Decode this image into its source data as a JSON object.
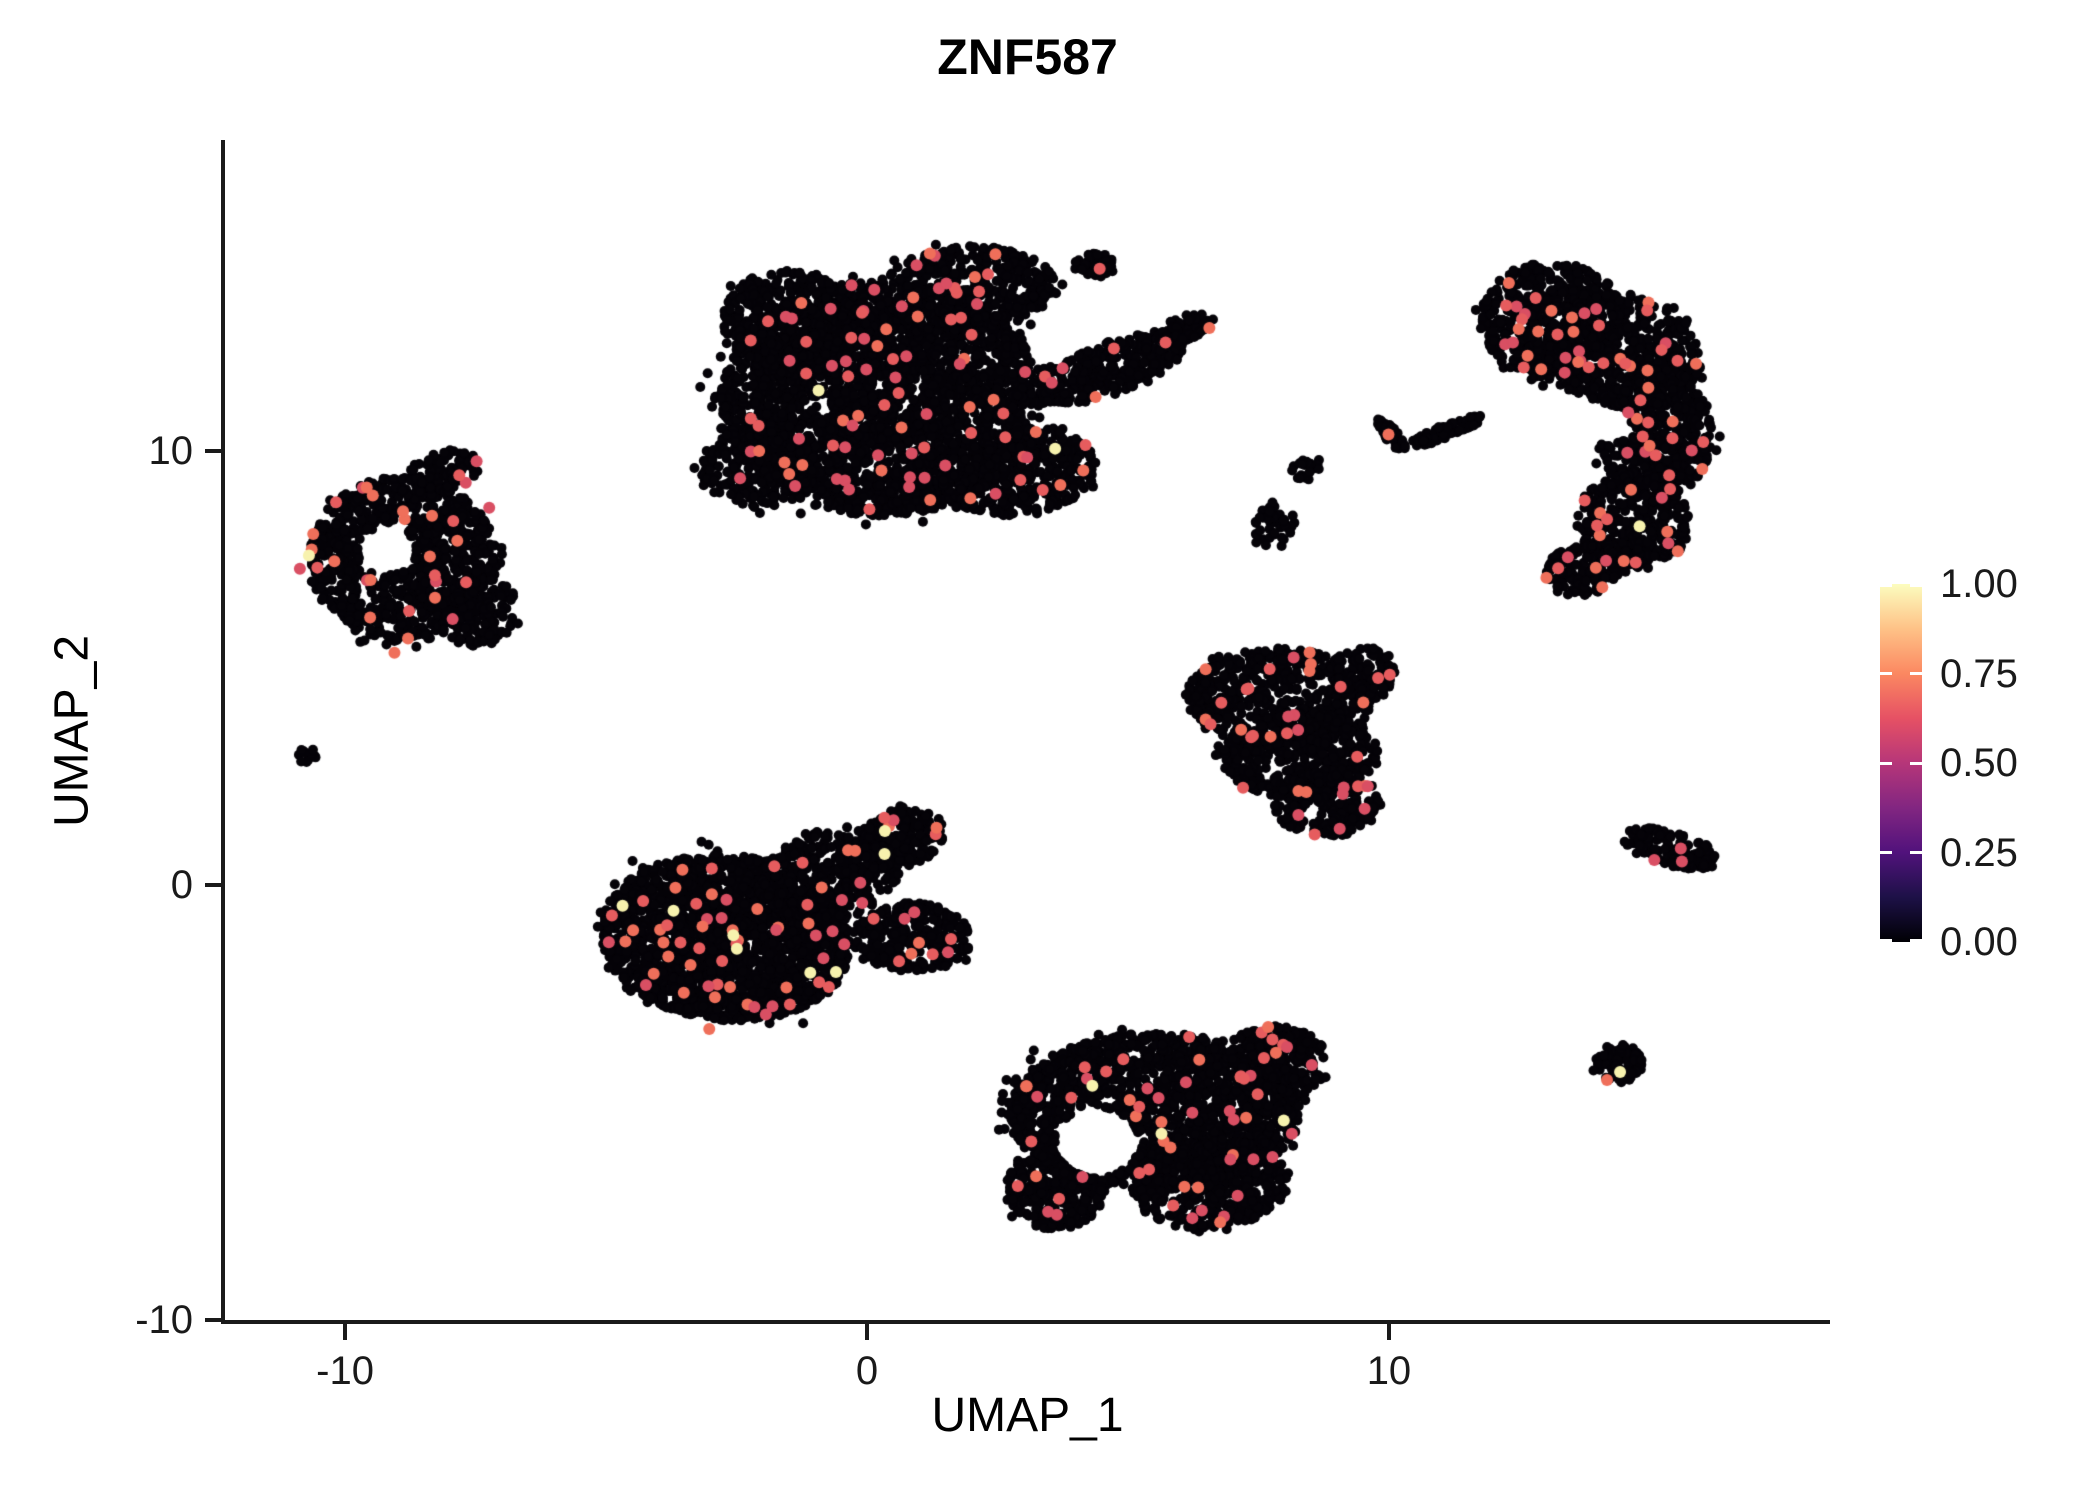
{
  "title": "ZNF587",
  "axes": {
    "x_label": "UMAP_1",
    "y_label": "UMAP_2",
    "x_ticks": [
      {
        "value": -10,
        "label": "-10"
      },
      {
        "value": 0,
        "label": "0"
      },
      {
        "value": 10,
        "label": "10"
      }
    ],
    "y_ticks": [
      {
        "value": 10,
        "label": "10"
      },
      {
        "value": 0,
        "label": "0"
      },
      {
        "value": -10,
        "label": "-10"
      }
    ]
  },
  "legend": {
    "ticks": [
      {
        "value": 1.0,
        "label": "1.00"
      },
      {
        "value": 0.75,
        "label": "0.75"
      },
      {
        "value": 0.5,
        "label": "0.50"
      },
      {
        "value": 0.25,
        "label": "0.25"
      },
      {
        "value": 0.0,
        "label": "0.00"
      }
    ],
    "gradient": [
      "#000004",
      "#1d1147",
      "#51127c",
      "#822681",
      "#b63679",
      "#e65164",
      "#fb8861",
      "#fec287",
      "#fcfdbf"
    ]
  },
  "chart_data": {
    "type": "scatter",
    "title": "ZNF587",
    "xlabel": "UMAP_1",
    "ylabel": "UMAP_2",
    "xlim": [
      -12.3,
      18.45
    ],
    "ylim": [
      -10,
      17.15
    ],
    "grid": false,
    "legend_position": "right",
    "color_scale": {
      "min": 0.0,
      "max": 1.0,
      "palette": "magma"
    },
    "point_colors": {
      "zero_expression": "#050308",
      "low_mid_expression": [
        "#e65c5e",
        "#d94f63",
        "#ef6f5a"
      ],
      "high_expression": "#f7f2ae"
    },
    "clusters": [
      {
        "name": "top-center-large",
        "blobs": [
          {
            "cx": 0.3,
            "cy": 11.2,
            "rx": 3.1,
            "ry": 2.7,
            "rot": 0,
            "n": 2800
          },
          {
            "cx": -1.3,
            "cy": 12.9,
            "rx": 1.5,
            "ry": 1.2,
            "rot": -20,
            "n": 450
          },
          {
            "cx": 1.9,
            "cy": 13.7,
            "rx": 1.7,
            "ry": 1.0,
            "rot": 5,
            "n": 420
          },
          {
            "cx": -2.1,
            "cy": 9.6,
            "rx": 1.1,
            "ry": 0.9,
            "rot": 0,
            "n": 260
          },
          {
            "cx": 2.9,
            "cy": 9.5,
            "rx": 1.5,
            "ry": 1.0,
            "rot": 10,
            "n": 380
          },
          {
            "cx": 4.7,
            "cy": 11.9,
            "rx": 1.5,
            "ry": 0.6,
            "rot": 25,
            "n": 280
          },
          {
            "cx": 6.1,
            "cy": 12.8,
            "rx": 0.55,
            "ry": 0.3,
            "rot": 25,
            "n": 70
          },
          {
            "cx": 4.35,
            "cy": 14.3,
            "rx": 0.4,
            "ry": 0.28,
            "rot": 0,
            "n": 40
          }
        ],
        "holes": [],
        "red": 100,
        "yellow": 2
      },
      {
        "name": "left",
        "blobs": [
          {
            "cx": -8.9,
            "cy": 7.5,
            "rx": 1.8,
            "ry": 1.9,
            "rot": 0,
            "n": 900
          },
          {
            "cx": -8.1,
            "cy": 9.5,
            "rx": 0.7,
            "ry": 0.5,
            "rot": 20,
            "n": 80
          },
          {
            "cx": -7.5,
            "cy": 6.4,
            "rx": 0.8,
            "ry": 0.9,
            "rot": 0,
            "n": 160
          }
        ],
        "holes": [
          {
            "cx": -9.2,
            "cy": 7.7,
            "r": 0.55
          }
        ],
        "red": 30,
        "yellow": 1
      },
      {
        "name": "tiny-far-left",
        "blobs": [
          {
            "cx": -10.75,
            "cy": 3.0,
            "rx": 0.2,
            "ry": 0.18,
            "rot": 0,
            "n": 12
          }
        ],
        "holes": [],
        "red": 0,
        "yellow": 0
      },
      {
        "name": "center-bottom-left",
        "blobs": [
          {
            "cx": -2.7,
            "cy": -1.2,
            "rx": 2.4,
            "ry": 1.9,
            "rot": -10,
            "n": 2000
          },
          {
            "cx": -0.7,
            "cy": 0.3,
            "rx": 1.4,
            "ry": 1.0,
            "rot": 20,
            "n": 380
          },
          {
            "cx": 0.7,
            "cy": 1.1,
            "rx": 0.85,
            "ry": 0.65,
            "rot": 35,
            "n": 150
          },
          {
            "cx": 0.9,
            "cy": -1.2,
            "rx": 1.1,
            "ry": 0.8,
            "rot": 0,
            "n": 260
          }
        ],
        "holes": [],
        "red": 72,
        "yellow": 8
      },
      {
        "name": "middle-right-triangle",
        "blobs": [
          {
            "cx": 7.9,
            "cy": 4.3,
            "rx": 1.8,
            "ry": 1.15,
            "rot": 0,
            "n": 520
          },
          {
            "cx": 8.3,
            "cy": 3.0,
            "rx": 1.5,
            "ry": 1.0,
            "rot": 0,
            "n": 430
          },
          {
            "cx": 8.8,
            "cy": 1.9,
            "rx": 1.0,
            "ry": 0.8,
            "rot": 0,
            "n": 200
          },
          {
            "cx": 9.5,
            "cy": 4.9,
            "rx": 0.65,
            "ry": 0.6,
            "rot": 0,
            "n": 110
          }
        ],
        "holes": [],
        "red": 36,
        "yellow": 0
      },
      {
        "name": "bottom-center",
        "blobs": [
          {
            "cx": 5.5,
            "cy": -5.2,
            "rx": 2.8,
            "ry": 1.8,
            "rot": 0,
            "n": 1600
          },
          {
            "cx": 6.6,
            "cy": -6.9,
            "rx": 1.5,
            "ry": 1.0,
            "rot": 10,
            "n": 420
          },
          {
            "cx": 3.6,
            "cy": -7.0,
            "rx": 0.95,
            "ry": 0.9,
            "rot": 0,
            "n": 260
          },
          {
            "cx": 7.9,
            "cy": -4.0,
            "rx": 1.0,
            "ry": 0.75,
            "rot": -15,
            "n": 220
          }
        ],
        "holes": [
          {
            "cx": 4.4,
            "cy": -5.9,
            "r": 0.8
          }
        ],
        "red": 58,
        "yellow": 3
      },
      {
        "name": "right-large-curved",
        "blobs": [
          {
            "cx": 13.1,
            "cy": 13.0,
            "rx": 1.35,
            "ry": 1.35,
            "rot": 0,
            "n": 480
          },
          {
            "cx": 14.5,
            "cy": 12.3,
            "rx": 1.5,
            "ry": 1.3,
            "rot": -20,
            "n": 520
          },
          {
            "cx": 15.1,
            "cy": 10.4,
            "rx": 1.1,
            "ry": 1.5,
            "rot": 0,
            "n": 470
          },
          {
            "cx": 14.7,
            "cy": 8.4,
            "rx": 1.1,
            "ry": 1.1,
            "rot": 0,
            "n": 370
          },
          {
            "cx": 13.8,
            "cy": 7.3,
            "rx": 0.85,
            "ry": 0.6,
            "rot": 20,
            "n": 160
          }
        ],
        "holes": [
          {
            "cx": 14.2,
            "cy": 10.6,
            "r": 0.45
          }
        ],
        "red": 72,
        "yellow": 1
      },
      {
        "name": "small-mid-blob-a",
        "blobs": [
          {
            "cx": 7.8,
            "cy": 8.3,
            "rx": 0.4,
            "ry": 0.55,
            "rot": 0,
            "n": 40
          }
        ],
        "holes": [],
        "red": 0,
        "yellow": 0
      },
      {
        "name": "small-mid-blob-b",
        "blobs": [
          {
            "cx": 8.45,
            "cy": 9.6,
            "rx": 0.32,
            "ry": 0.3,
            "rot": 0,
            "n": 22
          }
        ],
        "holes": [],
        "red": 0,
        "yellow": 0
      },
      {
        "name": "mid-streak",
        "blobs": [
          {
            "cx": 10.05,
            "cy": 10.35,
            "rx": 0.45,
            "ry": 0.13,
            "rot": -55,
            "n": 35
          },
          {
            "cx": 11.1,
            "cy": 10.45,
            "rx": 0.8,
            "ry": 0.15,
            "rot": 25,
            "n": 55
          }
        ],
        "holes": [],
        "red": 1,
        "yellow": 0
      },
      {
        "name": "small-right-streak",
        "blobs": [
          {
            "cx": 15.4,
            "cy": 0.85,
            "rx": 0.95,
            "ry": 0.4,
            "rot": -18,
            "n": 130
          }
        ],
        "holes": [],
        "red": 3,
        "yellow": 0
      },
      {
        "name": "small-right-dot",
        "blobs": [
          {
            "cx": 14.4,
            "cy": -4.1,
            "rx": 0.45,
            "ry": 0.45,
            "rot": 0,
            "n": 75
          }
        ],
        "holes": [],
        "red": 1,
        "yellow": 1
      }
    ]
  }
}
